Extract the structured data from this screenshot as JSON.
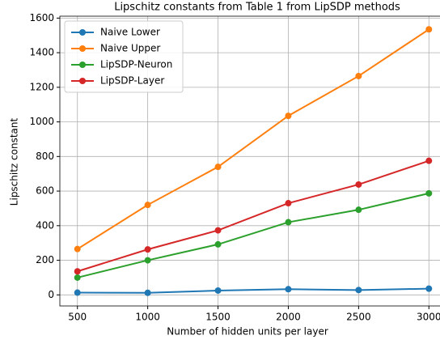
{
  "chart_data": {
    "type": "line",
    "title": "Lipschitz constants from Table 1 from LipSDP methods",
    "xlabel": "Number of hidden units per layer",
    "ylabel": "Lipschitz constant",
    "x": [
      500,
      1000,
      1500,
      2000,
      2500,
      3000
    ],
    "series": [
      {
        "name": "Naive Lower",
        "color": "#1f77b4",
        "values": [
          13,
          12,
          25,
          33,
          28,
          36
        ]
      },
      {
        "name": "Naive Upper",
        "color": "#ff7f0e",
        "values": [
          265,
          520,
          740,
          1035,
          1265,
          1535
        ]
      },
      {
        "name": "LipSDP-Neuron",
        "color": "#2ca02c",
        "values": [
          100,
          200,
          292,
          420,
          492,
          587
        ]
      },
      {
        "name": "LipSDP-Layer",
        "color": "#d62728",
        "values": [
          136,
          263,
          373,
          530,
          638,
          775
        ]
      }
    ],
    "xlim": [
      375,
      3125
    ],
    "xticks": [
      500,
      1000,
      1500,
      2000,
      2500,
      3000
    ],
    "ylim": [
      -64,
      1611
    ],
    "yticks": [
      0,
      200,
      400,
      600,
      800,
      1000,
      1200,
      1400,
      1600
    ],
    "grid": true,
    "legend": "upper left"
  }
}
